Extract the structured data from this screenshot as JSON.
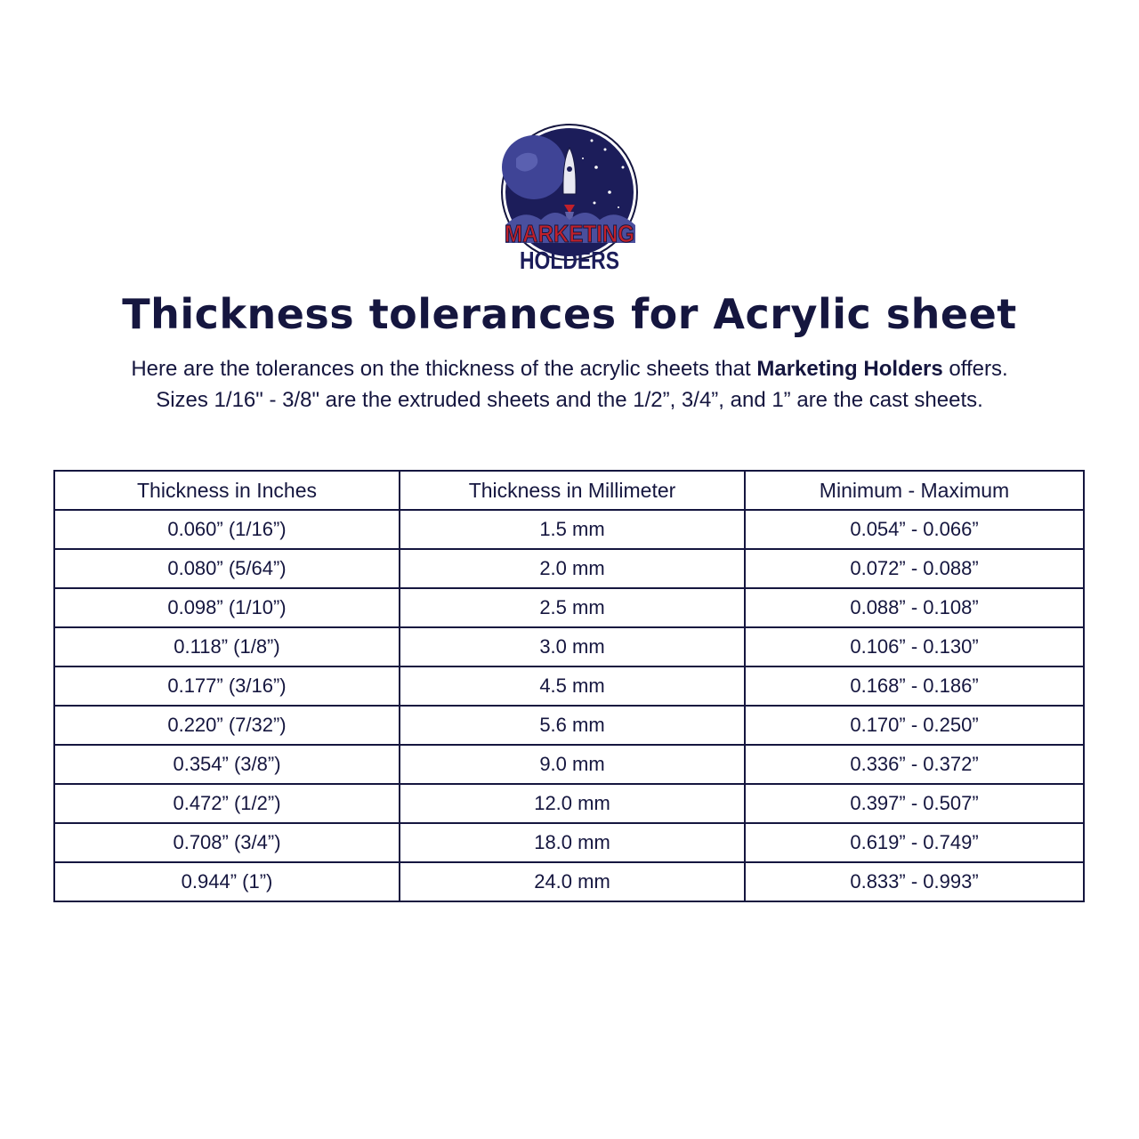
{
  "logo": {
    "line1": "MARKETING",
    "line2": "HOLDERS"
  },
  "title": "Thickness tolerances for Acrylic sheet",
  "intro": {
    "line1_pre": "Here are the tolerances on the thickness of the acrylic sheets that ",
    "line1_bold": "Marketing Holders",
    "line1_post": " offers.",
    "line2": "Sizes 1/16\" - 3/8\" are the extruded sheets and the 1/2”, 3/4”, and 1” are the cast sheets."
  },
  "table": {
    "headers": [
      "Thickness in Inches",
      "Thickness in Millimeter",
      "Minimum - Maximum"
    ],
    "rows": [
      [
        "0.060” (1/16”)",
        "1.5 mm",
        "0.054” - 0.066”"
      ],
      [
        "0.080” (5/64”)",
        "2.0 mm",
        "0.072” - 0.088”"
      ],
      [
        "0.098” (1/10”)",
        "2.5 mm",
        "0.088” - 0.108”"
      ],
      [
        "0.118” (1/8”)",
        "3.0 mm",
        "0.106” - 0.130”"
      ],
      [
        "0.177” (3/16”)",
        "4.5 mm",
        "0.168” - 0.186”"
      ],
      [
        "0.220” (7/32”)",
        "5.6 mm",
        "0.170” - 0.250”"
      ],
      [
        "0.354” (3/8”)",
        "9.0 mm",
        "0.336” - 0.372”"
      ],
      [
        "0.472” (1/2”)",
        "12.0 mm",
        "0.397” - 0.507”"
      ],
      [
        "0.708” (3/4”)",
        "18.0 mm",
        "0.619” - 0.749”"
      ],
      [
        "0.944” (1”)",
        "24.0 mm",
        "0.833” - 0.993”"
      ]
    ]
  },
  "colors": {
    "navy": "#15163f",
    "logo_red": "#c0202a",
    "logo_sky": "#1c1d5a"
  }
}
